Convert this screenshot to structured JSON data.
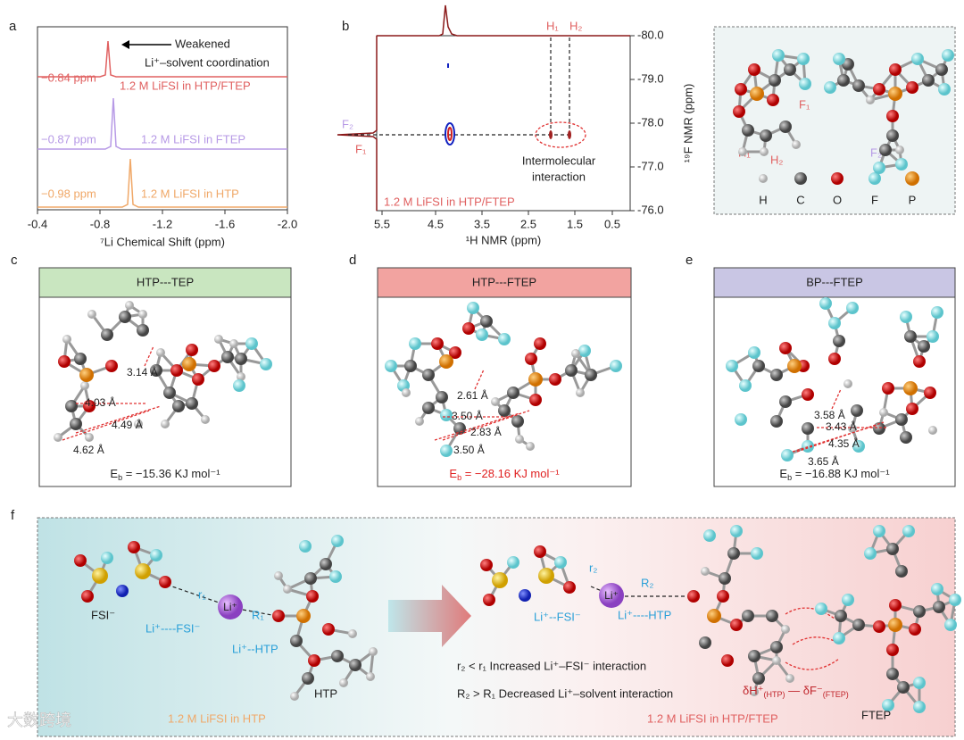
{
  "panel_a": {
    "label": "a",
    "annotation_1": "Weakened",
    "annotation_2": "Li⁺–solvent coordination",
    "spectra": [
      {
        "shift": "−0.84 ppm",
        "sample": "1.2 M LiFSI in HTP/FTEP"
      },
      {
        "shift": "−0.87 ppm",
        "sample": "1.2 M LiFSI in FTEP"
      },
      {
        "shift": "−0.98 ppm",
        "sample": "1.2 M LiFSI in HTP"
      }
    ],
    "xticks": [
      "-0.4",
      "-0.8",
      "-1.2",
      "-1.6",
      "-2.0"
    ],
    "x_label": "⁷Li Chemical Shift (ppm)"
  },
  "panel_b": {
    "label": "b",
    "peaks": [
      "H₁",
      "H₂"
    ],
    "f_labels": [
      "F₂",
      "F₁"
    ],
    "annotation_1": "Intermolecular",
    "annotation_2": "interaction",
    "sample": "1.2 M LiFSI in HTP/FTEP",
    "xticks": [
      "5.5",
      "4.5",
      "3.5",
      "2.5",
      "1.5",
      "0.5"
    ],
    "yticks": [
      "-80.0",
      "-79.0",
      "-78.0",
      "-77.0",
      "-76.0"
    ],
    "x_label": "¹H NMR (ppm)",
    "y_label": "¹⁹F NMR (ppm)"
  },
  "panel_structures": {
    "labels": [
      "H₁",
      "H₂",
      "F₁",
      "F₂"
    ],
    "legend": [
      "H",
      "C",
      "O",
      "F",
      "P"
    ]
  },
  "panels_cde": [
    {
      "label": "c",
      "header": "HTP---TEP",
      "distances": [
        "3.14 Å",
        "4.03 Å",
        "4.49 Å",
        "4.62 Å"
      ],
      "energy": [
        "E",
        "b",
        " = −15.36 KJ mol⁻¹"
      ]
    },
    {
      "label": "d",
      "header": "HTP---FTEP",
      "distances": [
        "2.61 Å",
        "3.50 Å",
        "2.83 Å",
        "3.50 Å"
      ],
      "energy": [
        "E",
        "b",
        " = −28.16 KJ mol⁻¹"
      ]
    },
    {
      "label": "e",
      "header": "BP---FTEP",
      "distances": [
        "3.58 Å",
        "3.43 Å",
        "4.35 Å",
        "3.65 Å"
      ],
      "energy": [
        "E",
        "b",
        " = −16.88 KJ mol⁻¹"
      ]
    }
  ],
  "panel_f": {
    "label": "f",
    "fsi": "FSI⁻",
    "r1": "r₁",
    "li_fsi_1": "Li⁺----FSI⁻",
    "li": "Li⁺",
    "R1": "R₁",
    "li_htp_1": "Li⁺--HTP",
    "htp": "HTP",
    "sample_1": "1.2 M LiFSI in HTP",
    "r2": "r₂",
    "li_fsi_2": "Li⁺--FSI⁻",
    "R2": "R₂",
    "li_htp_2": "Li⁺----HTP",
    "statement_1": "r₂ < r₁ Increased Li⁺–FSI⁻ interaction",
    "statement_2": "R₂ > R₁ Decreased Li⁺–solvent interaction",
    "delta": [
      "δH⁺",
      "(HTP)",
      " — δF⁻",
      "(FTEP)"
    ],
    "sample_2": "1.2 M LiFSI in HTP/FTEP",
    "ftep": "FTEP"
  },
  "watermark": "大数跨境"
}
